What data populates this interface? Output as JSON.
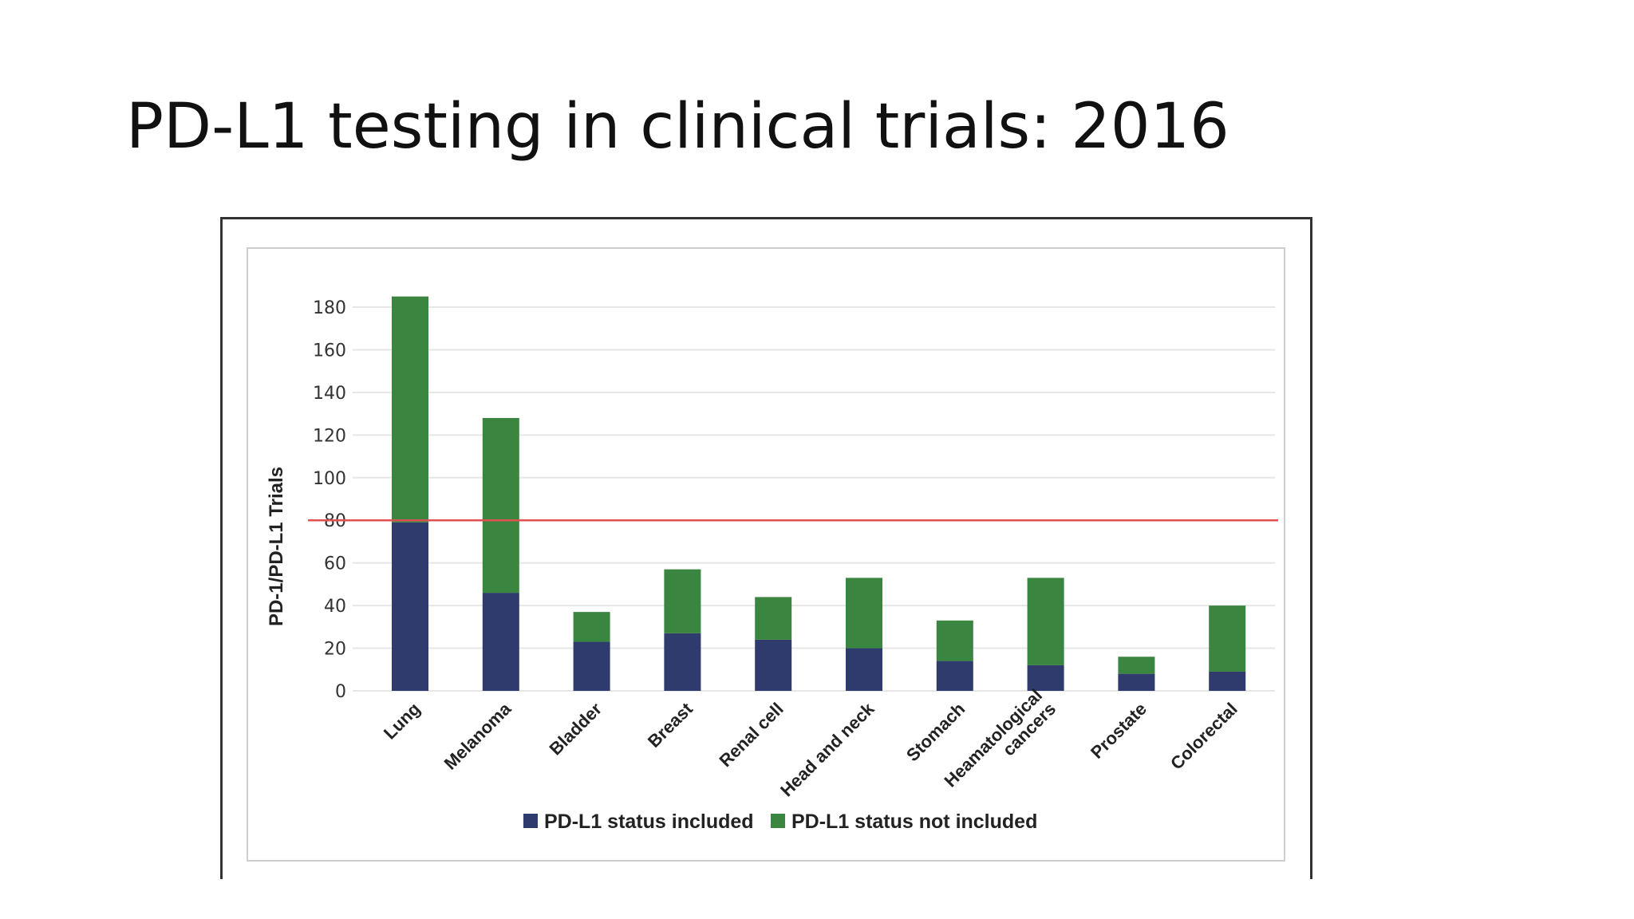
{
  "slide": {
    "title": "PD-L1 testing in clinical trials: 2016"
  },
  "chart_data": {
    "type": "bar",
    "stacked": true,
    "categories": [
      [
        "Lung"
      ],
      [
        "Melanoma"
      ],
      [
        "Bladder"
      ],
      [
        "Breast"
      ],
      [
        "Renal cell"
      ],
      [
        "Head and neck"
      ],
      [
        "Stomach"
      ],
      [
        "Heamatological",
        "cancers"
      ],
      [
        "Prostate"
      ],
      [
        "Colorectal"
      ]
    ],
    "series": [
      {
        "name": "PD-L1 status included",
        "color": "#2e3b6c",
        "values": [
          79,
          46,
          23,
          27,
          24,
          20,
          14,
          12,
          8,
          9
        ]
      },
      {
        "name": "PD-L1 status not included",
        "color": "#3a8540",
        "values": [
          106,
          82,
          14,
          30,
          20,
          33,
          19,
          41,
          8,
          31
        ]
      }
    ],
    "title": "",
    "xlabel": "",
    "ylabel": "PD-1/PD-L1 Trials",
    "ylim": [
      0,
      180
    ],
    "yticks": [
      0,
      20,
      40,
      60,
      80,
      100,
      120,
      140,
      160,
      180
    ],
    "reference_line": {
      "y": 80,
      "color": "#e05050"
    },
    "grid": true,
    "legend_position": "bottom",
    "gridline_color": "#e6e6e6"
  }
}
